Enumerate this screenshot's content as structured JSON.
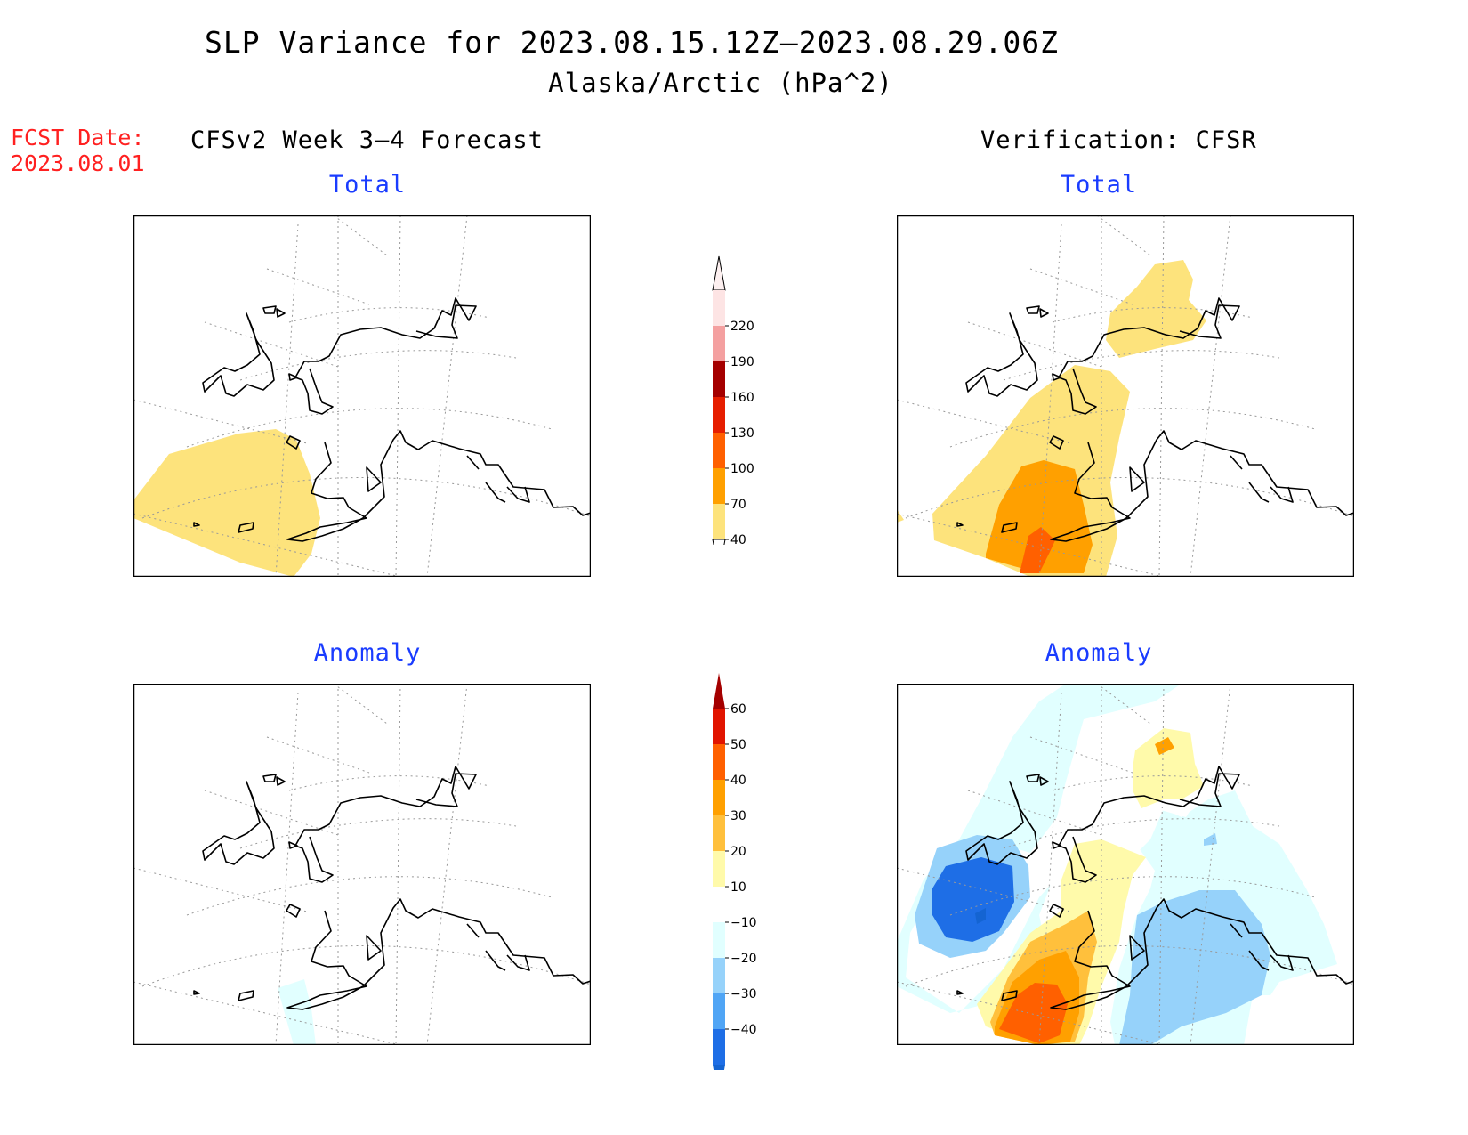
{
  "header": {
    "title": "SLP Variance for 2023.08.15.12Z—2023.08.29.06Z",
    "subtitle": "Alaska/Arctic (hPa^2)",
    "fcst_date_label": "FCST Date:",
    "fcst_date_value": "2023.08.01",
    "left_column_title": "CFSv2 Week 3—4 Forecast",
    "right_column_title": "Verification: CFSR"
  },
  "panels": [
    {
      "id": "forecast-total",
      "title": "Total"
    },
    {
      "id": "verification-total",
      "title": "Total"
    },
    {
      "id": "forecast-anomaly",
      "title": "Anomaly"
    },
    {
      "id": "verification-anomaly",
      "title": "Anomaly"
    }
  ],
  "colorbars": {
    "total": {
      "ticks": [
        "40",
        "70",
        "100",
        "130",
        "160",
        "190",
        "220"
      ],
      "colors": [
        "#fde37c",
        "#ffa000",
        "#ff6000",
        "#e61e00",
        "#a50000",
        "#f4a0a0",
        "#fde4e4"
      ]
    },
    "anomaly": {
      "ticks": [
        "−40",
        "−30",
        "−20",
        "−10",
        "10",
        "20",
        "30",
        "40",
        "50",
        "60"
      ],
      "colors": [
        "#1464d2",
        "#1e6ee6",
        "#50a5f5",
        "#96d2fa",
        "#e1ffff",
        "#ffffff",
        "#fffaaa",
        "#ffc03c",
        "#ffa000",
        "#ff6000",
        "#e11400",
        "#a50000"
      ]
    }
  }
}
